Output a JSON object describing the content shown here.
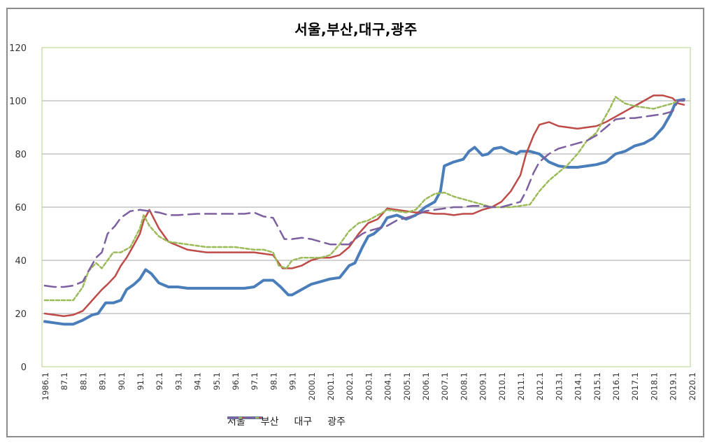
{
  "chart_data": {
    "type": "line",
    "title": "서울,부산,대구,광주",
    "xlabel": "",
    "ylabel": "",
    "ylim": [
      0,
      120
    ],
    "yticks": [
      0,
      20,
      40,
      60,
      80,
      100,
      120
    ],
    "grid": "horizontal",
    "legend_position": "bottom",
    "categories": [
      "1986.1",
      "87.1",
      "88.1",
      "89.1",
      "90.1",
      "91.1",
      "92.1",
      "93.1",
      "94.1",
      "95.1",
      "96.1",
      "97.1",
      "98.1",
      "99.1",
      "2000.1",
      "2001.1",
      "2002.1",
      "2003.1",
      "2004.1",
      "2005.1",
      "2006.1",
      "2007.1",
      "2008.1",
      "2009.1",
      "2010.1",
      "2011.1",
      "2012.1",
      "2013.1",
      "2014.1",
      "2015.1",
      "2016.1",
      "2017.1",
      "2018.1",
      "2019.1",
      "2020.1"
    ],
    "series": [
      {
        "name": "서울",
        "color": "#4a7ebb",
        "style": "solid",
        "width": 4,
        "x": [
          1986.0,
          1986.5,
          1987.0,
          1987.5,
          1988.0,
          1988.5,
          1988.8,
          1989.2,
          1989.6,
          1990.0,
          1990.3,
          1990.7,
          1991.0,
          1991.3,
          1991.6,
          1992.0,
          1992.5,
          1993.0,
          1993.5,
          1994.0,
          1994.5,
          1995.0,
          1995.5,
          1996.0,
          1996.5,
          1997.0,
          1997.5,
          1998.0,
          1998.4,
          1998.8,
          1999.0,
          1999.5,
          2000.0,
          2000.5,
          2001.0,
          2001.5,
          2002.0,
          2002.3,
          2002.7,
          2003.0,
          2003.3,
          2003.7,
          2004.0,
          2004.5,
          2005.0,
          2005.5,
          2006.0,
          2006.5,
          2006.8,
          2007.0,
          2007.5,
          2008.0,
          2008.3,
          2008.6,
          2009.0,
          2009.3,
          2009.6,
          2010.0,
          2010.4,
          2010.8,
          2011.0,
          2011.5,
          2012.0,
          2012.5,
          2013.0,
          2013.5,
          2014.0,
          2014.5,
          2015.0,
          2015.5,
          2016.0,
          2016.5,
          2017.0,
          2017.5,
          2018.0,
          2018.5,
          2018.9,
          2019.2,
          2019.6
        ],
        "values": [
          17,
          16.5,
          16,
          16,
          17.5,
          19.5,
          20,
          24,
          24,
          25,
          29,
          31,
          33,
          36.5,
          35,
          31.5,
          30,
          30,
          29.5,
          29.5,
          29.5,
          29.5,
          29.5,
          29.5,
          29.5,
          30,
          32.5,
          32.5,
          30,
          27,
          27,
          29,
          31,
          32,
          33,
          33.5,
          38,
          39,
          45,
          49,
          50,
          52.5,
          56,
          57,
          55.5,
          57,
          60,
          62,
          66,
          75.5,
          77,
          78,
          81,
          82.5,
          79.5,
          80,
          82,
          82.5,
          81,
          80,
          81,
          81,
          80,
          77,
          75.5,
          75,
          75,
          75.5,
          76,
          77,
          80,
          81,
          83,
          84,
          86,
          90,
          95,
          100,
          100.5
        ]
      },
      {
        "name": "부산",
        "color": "#be4b48",
        "style": "solid",
        "width": 2.5,
        "x": [
          1986.0,
          1986.5,
          1987.0,
          1987.5,
          1988.0,
          1988.5,
          1989.0,
          1989.3,
          1989.7,
          1990.0,
          1990.3,
          1990.7,
          1991.0,
          1991.2,
          1991.5,
          1992.0,
          1992.5,
          1993.0,
          1993.5,
          1994.0,
          1994.5,
          1995.0,
          1995.5,
          1996.0,
          1996.5,
          1997.0,
          1997.5,
          1998.0,
          1998.5,
          1999.0,
          1999.5,
          2000.0,
          2000.5,
          2001.0,
          2001.5,
          2002.0,
          2002.5,
          2003.0,
          2003.5,
          2004.0,
          2004.5,
          2005.0,
          2005.5,
          2006.0,
          2006.5,
          2007.0,
          2007.5,
          2008.0,
          2008.5,
          2009.0,
          2009.5,
          2010.0,
          2010.5,
          2011.0,
          2011.3,
          2011.7,
          2012.0,
          2012.5,
          2013.0,
          2013.5,
          2014.0,
          2014.5,
          2015.0,
          2015.5,
          2016.0,
          2016.5,
          2017.0,
          2017.5,
          2018.0,
          2018.5,
          2019.0,
          2019.3,
          2019.6
        ],
        "values": [
          20,
          19.5,
          19,
          19.5,
          21,
          25,
          29,
          31,
          34,
          38,
          41,
          46,
          50,
          55,
          59,
          52,
          47,
          45.5,
          44,
          43.5,
          43,
          43,
          43,
          43,
          43,
          43,
          42.5,
          42,
          37,
          37,
          38,
          40,
          41,
          41,
          42,
          45,
          50,
          54,
          55.5,
          59.5,
          59,
          58.5,
          58,
          58,
          57.5,
          57.5,
          57,
          57.5,
          57.5,
          59,
          60,
          62,
          66,
          72,
          80,
          87,
          91,
          92,
          90.5,
          90,
          89.5,
          90,
          90.5,
          92,
          94,
          96,
          98,
          100,
          102,
          102,
          101,
          99,
          98.5
        ]
      },
      {
        "name": "대구",
        "color": "#9bbb59",
        "style": "dotted",
        "width": 2.5,
        "x": [
          1986.0,
          1986.5,
          1987.0,
          1987.5,
          1988.0,
          1988.3,
          1988.7,
          1989.0,
          1989.3,
          1989.6,
          1990.0,
          1990.5,
          1991.0,
          1991.2,
          1991.5,
          1992.0,
          1992.5,
          1993.0,
          1993.5,
          1994.0,
          1994.5,
          1995.0,
          1995.5,
          1996.0,
          1996.5,
          1997.0,
          1997.5,
          1998.0,
          1998.3,
          1998.7,
          1999.0,
          1999.5,
          2000.0,
          2000.5,
          2001.0,
          2001.5,
          2002.0,
          2002.5,
          2003.0,
          2003.5,
          2004.0,
          2004.5,
          2005.0,
          2005.5,
          2006.0,
          2006.5,
          2007.0,
          2007.5,
          2008.0,
          2008.5,
          2009.0,
          2009.5,
          2010.0,
          2010.5,
          2011.0,
          2011.5,
          2012.0,
          2012.5,
          2013.0,
          2013.5,
          2014.0,
          2014.5,
          2015.0,
          2015.3,
          2015.7,
          2016.0,
          2016.5,
          2017.0,
          2017.5,
          2018.0,
          2018.5,
          2019.0,
          2019.3,
          2019.6
        ],
        "values": [
          25,
          25,
          25,
          25,
          30,
          36,
          39,
          37,
          40,
          43,
          43,
          45,
          52,
          57,
          53,
          49,
          47,
          46.5,
          46,
          45.5,
          45,
          45,
          45,
          45,
          44.5,
          44,
          44,
          43,
          38,
          37,
          40,
          41,
          41,
          41,
          42,
          46,
          51,
          54,
          55,
          57,
          59,
          58.5,
          58,
          59,
          63,
          65,
          65.5,
          64,
          63,
          62,
          61,
          60,
          60,
          60,
          60.5,
          61,
          66,
          70,
          73,
          76,
          80,
          85,
          88,
          92,
          97,
          101.5,
          99,
          98,
          97.5,
          97,
          98,
          99,
          100,
          100
        ]
      },
      {
        "name": "광주",
        "color": "#7d60a0",
        "style": "dashed",
        "width": 2.5,
        "x": [
          1986.0,
          1986.5,
          1987.0,
          1987.5,
          1988.0,
          1988.3,
          1988.7,
          1989.0,
          1989.3,
          1989.7,
          1990.0,
          1990.5,
          1991.0,
          1991.5,
          1992.0,
          1992.5,
          1993.0,
          1994.0,
          1995.0,
          1996.0,
          1996.5,
          1997.0,
          1997.5,
          1998.0,
          1998.3,
          1998.6,
          1999.0,
          1999.5,
          2000.0,
          2000.5,
          2001.0,
          2001.5,
          2002.0,
          2002.3,
          2002.7,
          2003.0,
          2003.5,
          2004.0,
          2004.5,
          2005.0,
          2005.5,
          2006.0,
          2006.5,
          2007.0,
          2007.5,
          2008.0,
          2008.5,
          2009.0,
          2009.5,
          2010.0,
          2010.5,
          2011.0,
          2011.3,
          2011.7,
          2012.0,
          2012.5,
          2013.0,
          2013.5,
          2014.0,
          2014.5,
          2015.0,
          2015.5,
          2016.0,
          2016.5,
          2017.0,
          2017.5,
          2018.0,
          2018.5,
          2019.0,
          2019.3,
          2019.6
        ],
        "values": [
          30.5,
          30,
          30,
          30.5,
          32,
          36,
          41,
          43,
          50,
          53,
          56,
          58.5,
          59,
          58.5,
          58,
          57,
          57,
          57.5,
          57.5,
          57.5,
          57.5,
          58,
          56.5,
          56,
          52,
          48,
          48,
          48.5,
          48,
          47,
          46,
          46,
          46,
          48,
          50,
          51,
          52,
          53,
          55,
          56,
          57,
          58.5,
          59,
          59.5,
          60,
          60,
          60.5,
          60.5,
          60,
          60,
          61,
          62,
          66,
          73,
          77,
          80,
          82,
          83,
          84,
          85,
          87,
          90,
          93,
          93.5,
          93.5,
          94,
          94.5,
          95,
          96,
          100,
          100
        ]
      }
    ]
  },
  "legend": [
    {
      "label": "서울"
    },
    {
      "label": "부산"
    },
    {
      "label": "대구"
    },
    {
      "label": "광주"
    }
  ]
}
